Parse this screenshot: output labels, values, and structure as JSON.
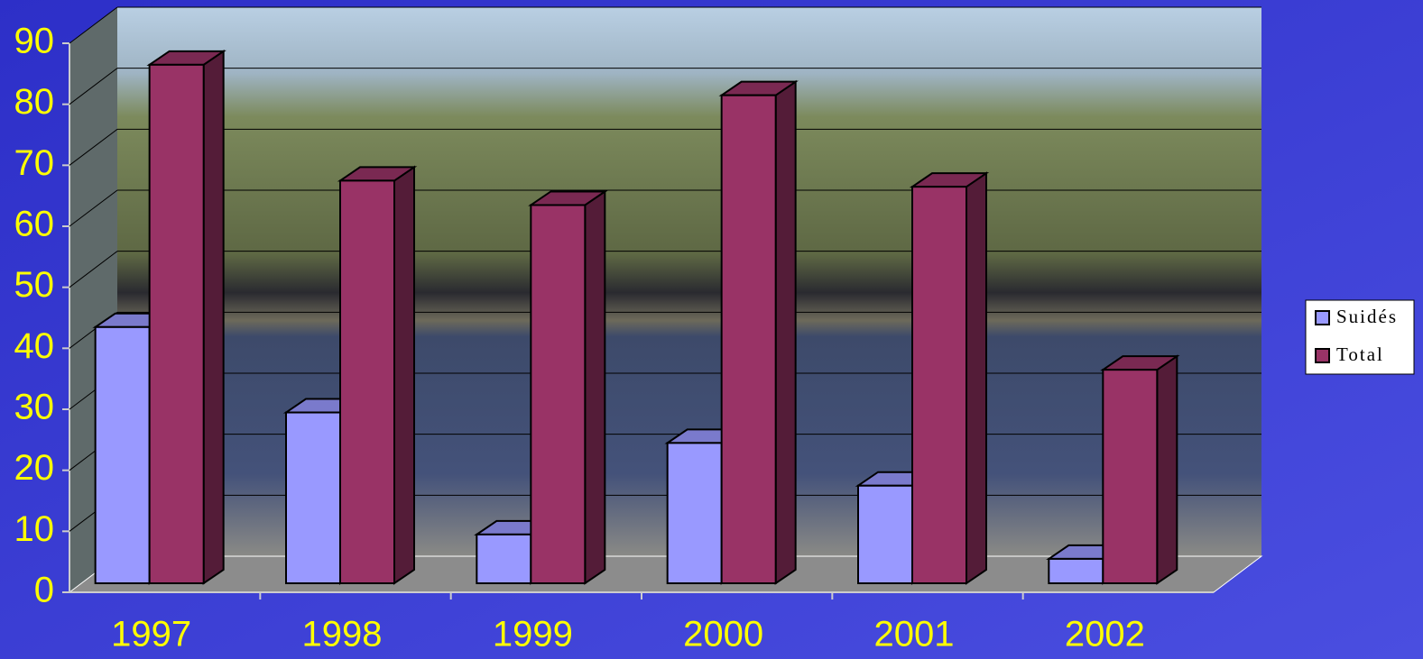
{
  "chart_data": {
    "type": "bar3d",
    "categories": [
      "1997",
      "1998",
      "1999",
      "2000",
      "2001",
      "2002"
    ],
    "series": [
      {
        "name": "Suidés",
        "color": "#9999ff",
        "values": [
          42,
          28,
          8,
          23,
          16,
          4
        ]
      },
      {
        "name": "Total",
        "color": "#993366",
        "values": [
          85,
          66,
          62,
          80,
          65,
          35
        ]
      }
    ],
    "ylim": [
      0,
      90
    ],
    "yticks": [
      0,
      10,
      20,
      30,
      40,
      50,
      60,
      70,
      80,
      90
    ],
    "grid": true,
    "legend": "right"
  }
}
